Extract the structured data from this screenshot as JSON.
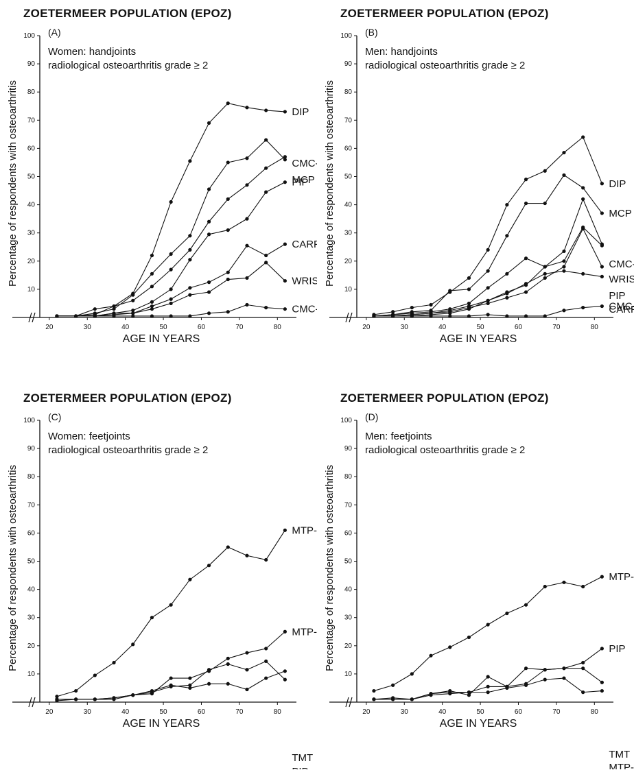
{
  "page_title": "ZOETERMEER POPULATION (EPOZ)",
  "chart_data": [
    {
      "type": "line",
      "title": "ZOETERMEER POPULATION (EPOZ)",
      "panel_label": "(A)",
      "subtitle_lines": [
        "Women: handjoints",
        "radiological osteoarthritis grade ≥ 2"
      ],
      "xlabel": "AGE IN YEARS",
      "ylabel": "Percentage of respondents with osteoarthritis",
      "xlim": [
        17.5,
        85
      ],
      "ylim": [
        0,
        100
      ],
      "xticks": [
        20,
        30,
        40,
        50,
        60,
        70,
        80
      ],
      "yticks": [
        10,
        20,
        30,
        40,
        50,
        60,
        70,
        80,
        90,
        100
      ],
      "x": [
        22,
        27,
        32,
        37,
        42,
        47,
        52,
        57,
        62,
        67,
        72,
        77,
        82
      ],
      "series": [
        {
          "name": "DIP",
          "values": [
            0.5,
            0.5,
            3,
            4,
            8.5,
            22,
            41,
            55.5,
            69,
            76,
            74.5,
            73.5,
            73
          ]
        },
        {
          "name": "CMC-I",
          "values": [
            0.5,
            0.5,
            1,
            4,
            6,
            11,
            17,
            24,
            34,
            42,
            47,
            53,
            57
          ]
        },
        {
          "name": "MCP",
          "values": [
            0.5,
            0.5,
            1.5,
            3,
            8,
            15.5,
            22.5,
            29,
            45.5,
            55,
            56.5,
            63,
            56
          ]
        },
        {
          "name": "PIP",
          "values": [
            0.5,
            0.5,
            0.5,
            1.5,
            2.5,
            5.5,
            10,
            20.5,
            29.5,
            31,
            35,
            44.5,
            48
          ]
        },
        {
          "name": "CARPUS",
          "values": [
            0.5,
            0.5,
            0.5,
            1.5,
            1.5,
            4,
            6.5,
            10.5,
            12.5,
            16,
            25.5,
            22,
            26
          ]
        },
        {
          "name": "WRIST",
          "values": [
            0.5,
            0.5,
            0.5,
            1,
            1.5,
            3,
            5,
            8,
            9,
            13.5,
            14,
            19.5,
            13
          ]
        },
        {
          "name": "CMC-L",
          "values": [
            0.5,
            0.5,
            0.5,
            0.5,
            0.5,
            0.5,
            0.5,
            0.5,
            1.5,
            2,
            4.5,
            3.5,
            3
          ]
        }
      ]
    },
    {
      "type": "line",
      "title": "ZOETERMEER POPULATION (EPOZ)",
      "panel_label": "(B)",
      "subtitle_lines": [
        "Men: handjoints",
        "radiological osteoarthritis grade ≥ 2"
      ],
      "xlabel": "AGE IN YEARS",
      "ylabel": "Percentage of respondents with osteoarthritis",
      "xlim": [
        17.5,
        85
      ],
      "ylim": [
        0,
        100
      ],
      "xticks": [
        20,
        30,
        40,
        50,
        60,
        70,
        80
      ],
      "yticks": [
        10,
        20,
        30,
        40,
        50,
        60,
        70,
        80,
        90,
        100
      ],
      "x": [
        22,
        27,
        32,
        37,
        42,
        47,
        52,
        57,
        62,
        67,
        72,
        77,
        82
      ],
      "series": [
        {
          "name": "DIP",
          "values": [
            1,
            2,
            3.5,
            4.5,
            9,
            14,
            24,
            40,
            49,
            52,
            58.5,
            64,
            47.5
          ]
        },
        {
          "name": "MCP",
          "values": [
            0.5,
            1,
            2,
            2.5,
            9.5,
            10,
            16.5,
            29,
            40.5,
            40.5,
            50.5,
            46,
            37
          ]
        },
        {
          "name": "CMC-I",
          "values": [
            0.5,
            1,
            1.5,
            2,
            3,
            5,
            10.5,
            15.5,
            21,
            18,
            23.5,
            42,
            26
          ]
        },
        {
          "name": "WRIST",
          "values": [
            0.5,
            0.5,
            1,
            1.5,
            2.5,
            4,
            6,
            9,
            11.5,
            18,
            20,
            32,
            25.5
          ]
        },
        {
          "name": "PIP",
          "values": [
            0.5,
            0.5,
            1,
            1.5,
            2,
            3.5,
            5,
            7,
            9,
            14,
            18,
            31.5,
            18
          ]
        },
        {
          "name": "CARPUS",
          "values": [
            0.5,
            0.5,
            0.5,
            1,
            1.5,
            3,
            6,
            8.5,
            12,
            15.5,
            16.5,
            15.5,
            14.5
          ]
        },
        {
          "name": "CMC-L",
          "values": [
            0.5,
            0.5,
            0.5,
            0.5,
            0.5,
            0.5,
            1,
            0.5,
            0.5,
            0.5,
            2.5,
            3.5,
            4
          ]
        }
      ]
    },
    {
      "type": "line",
      "title": "ZOETERMEER POPULATION (EPOZ)",
      "panel_label": "(C)",
      "subtitle_lines": [
        "Women: feetjoints",
        "radiological osteoarthritis grade ≥ 2"
      ],
      "xlabel": "AGE IN YEARS",
      "ylabel": "Percentage of respondents with osteoarthritis",
      "xlim": [
        17.5,
        85
      ],
      "ylim": [
        0,
        100
      ],
      "xticks": [
        20,
        30,
        40,
        50,
        60,
        70,
        80
      ],
      "yticks": [
        10,
        20,
        30,
        40,
        50,
        60,
        70,
        80,
        90,
        100
      ],
      "x": [
        22,
        27,
        32,
        37,
        42,
        47,
        52,
        57,
        62,
        67,
        72,
        77,
        82
      ],
      "series": [
        {
          "name": "MTP-I",
          "values": [
            2,
            4,
            9.5,
            14,
            20.5,
            30,
            34.5,
            43.5,
            48.5,
            55,
            52,
            50.5,
            61
          ]
        },
        {
          "name": "MTP-L",
          "values": [
            1,
            1,
            1,
            1.5,
            2.5,
            3,
            8.5,
            8.5,
            11,
            15.5,
            17.5,
            19,
            25
          ]
        },
        {
          "name": "TMT",
          "values": [
            1,
            1,
            1,
            1.5,
            2.5,
            3.5,
            5.5,
            6,
            11.5,
            13.5,
            11.5,
            14.5,
            8
          ]
        },
        {
          "name": "PIP",
          "values": [
            0.5,
            1,
            1,
            1,
            2.5,
            4,
            6,
            5,
            6.5,
            6.5,
            4.5,
            8.5,
            11
          ]
        }
      ]
    },
    {
      "type": "line",
      "title": "ZOETERMEER POPULATION (EPOZ)",
      "panel_label": "(D)",
      "subtitle_lines": [
        "Men: feetjoints",
        "radiological osteoarthritis grade ≥ 2"
      ],
      "xlabel": "AGE IN YEARS",
      "ylabel": "Percentage of respondents with osteoarthritis",
      "xlim": [
        17.5,
        85
      ],
      "ylim": [
        0,
        100
      ],
      "xticks": [
        20,
        30,
        40,
        50,
        60,
        70,
        80
      ],
      "yticks": [
        10,
        20,
        30,
        40,
        50,
        60,
        70,
        80,
        90,
        100
      ],
      "x": [
        22,
        27,
        32,
        37,
        42,
        47,
        52,
        57,
        62,
        67,
        72,
        77,
        82
      ],
      "series": [
        {
          "name": "MTP-I",
          "values": [
            4,
            6,
            10,
            16.5,
            19.5,
            23,
            27.5,
            31.5,
            34.5,
            41,
            42.5,
            41,
            44.5
          ]
        },
        {
          "name": "PIP",
          "values": [
            1,
            1,
            1,
            3,
            3.5,
            3.5,
            5.5,
            5.5,
            12,
            11.5,
            12,
            14,
            19
          ]
        },
        {
          "name": "TMT",
          "values": [
            1,
            1.5,
            1,
            3,
            4,
            2.5,
            9,
            5.5,
            6.5,
            11.5,
            12,
            12,
            7
          ]
        },
        {
          "name": "MTP-L",
          "values": [
            1,
            1,
            1,
            2.5,
            3,
            3.5,
            3.5,
            5,
            6,
            8,
            8.5,
            3.5,
            4
          ]
        }
      ]
    }
  ]
}
